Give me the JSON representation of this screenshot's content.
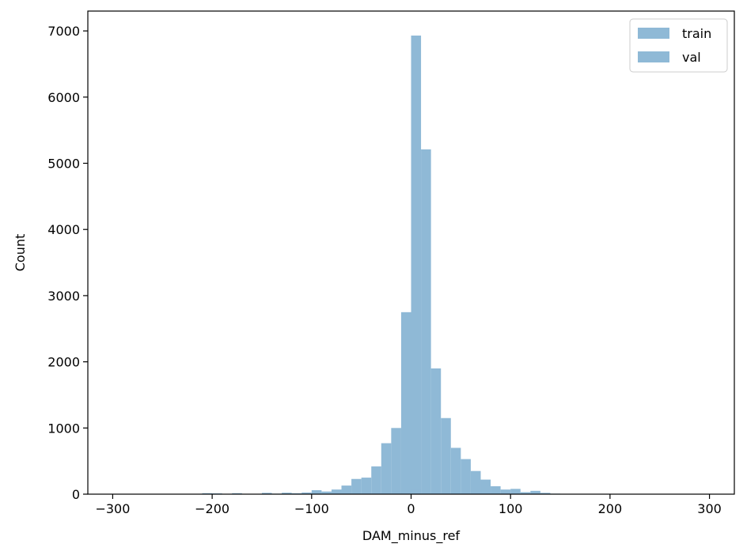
{
  "chart_data": {
    "type": "bar",
    "subtype": "histogram",
    "xlabel": "DAM_minus_ref",
    "ylabel": "Count",
    "xlim": [
      -325,
      325
    ],
    "ylim": [
      0,
      7300
    ],
    "xticks": [
      -300,
      -200,
      -100,
      0,
      100,
      200,
      300
    ],
    "xtick_labels": [
      "−300",
      "−200",
      "−100",
      "0",
      "100",
      "200",
      "300"
    ],
    "yticks": [
      0,
      1000,
      2000,
      3000,
      4000,
      5000,
      6000,
      7000
    ],
    "ytick_labels": [
      "0",
      "1000",
      "2000",
      "3000",
      "4000",
      "5000",
      "6000",
      "7000"
    ],
    "grid": false,
    "legend_position": "top-right",
    "bin_width": 10,
    "series": [
      {
        "name": "train",
        "color": "#8fb9d6",
        "bins": [
          [
            -300,
            -290,
            2
          ],
          [
            -290,
            -280,
            2
          ],
          [
            -280,
            -270,
            2
          ],
          [
            -270,
            -260,
            3
          ],
          [
            -260,
            -250,
            3
          ],
          [
            -250,
            -240,
            4
          ],
          [
            -240,
            -230,
            4
          ],
          [
            -230,
            -220,
            5
          ],
          [
            -220,
            -210,
            6
          ],
          [
            -210,
            -200,
            15
          ],
          [
            -200,
            -190,
            12
          ],
          [
            -190,
            -180,
            6
          ],
          [
            -180,
            -170,
            15
          ],
          [
            -170,
            -160,
            5
          ],
          [
            -160,
            -150,
            6
          ],
          [
            -150,
            -140,
            20
          ],
          [
            -140,
            -130,
            8
          ],
          [
            -130,
            -120,
            22
          ],
          [
            -120,
            -110,
            14
          ],
          [
            -110,
            -100,
            25
          ],
          [
            -100,
            -90,
            60
          ],
          [
            -90,
            -80,
            40
          ],
          [
            -80,
            -70,
            70
          ],
          [
            -70,
            -60,
            130
          ],
          [
            -60,
            -50,
            230
          ],
          [
            -50,
            -40,
            250
          ],
          [
            -40,
            -30,
            420
          ],
          [
            -30,
            -20,
            770
          ],
          [
            -20,
            -10,
            1000
          ],
          [
            -10,
            0,
            2750
          ],
          [
            0,
            10,
            6930
          ],
          [
            10,
            20,
            5210
          ],
          [
            20,
            30,
            1900
          ],
          [
            30,
            40,
            1150
          ],
          [
            40,
            50,
            700
          ],
          [
            50,
            60,
            530
          ],
          [
            60,
            70,
            350
          ],
          [
            70,
            80,
            220
          ],
          [
            80,
            90,
            120
          ],
          [
            90,
            100,
            70
          ],
          [
            100,
            110,
            80
          ],
          [
            110,
            120,
            30
          ],
          [
            120,
            130,
            50
          ],
          [
            130,
            140,
            20
          ],
          [
            140,
            150,
            8
          ],
          [
            150,
            160,
            6
          ],
          [
            160,
            170,
            5
          ],
          [
            170,
            180,
            4
          ],
          [
            180,
            190,
            4
          ],
          [
            190,
            200,
            3
          ],
          [
            200,
            210,
            3
          ],
          [
            210,
            220,
            3
          ],
          [
            220,
            230,
            2
          ],
          [
            230,
            240,
            2
          ],
          [
            240,
            250,
            2
          ],
          [
            250,
            260,
            2
          ],
          [
            260,
            270,
            2
          ],
          [
            270,
            280,
            2
          ],
          [
            280,
            290,
            2
          ],
          [
            290,
            300,
            2
          ]
        ]
      },
      {
        "name": "val",
        "color": "#8fb9d6",
        "bins": [
          [
            -200,
            -190,
            4
          ],
          [
            -180,
            -170,
            3
          ],
          [
            -150,
            -140,
            4
          ],
          [
            -120,
            -110,
            5
          ],
          [
            -100,
            -90,
            8
          ],
          [
            -80,
            -70,
            10
          ],
          [
            -60,
            -50,
            15
          ],
          [
            -40,
            -30,
            25
          ],
          [
            -20,
            -10,
            40
          ],
          [
            0,
            10,
            60
          ],
          [
            20,
            30,
            35
          ],
          [
            40,
            50,
            20
          ],
          [
            60,
            70,
            12
          ],
          [
            80,
            90,
            8
          ],
          [
            100,
            110,
            6
          ],
          [
            120,
            130,
            4
          ]
        ]
      }
    ]
  }
}
